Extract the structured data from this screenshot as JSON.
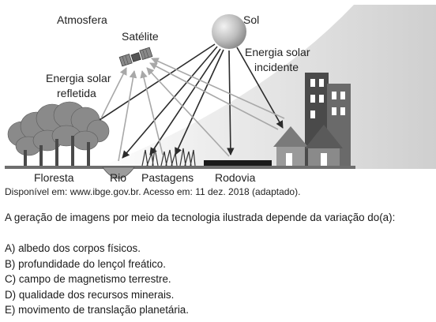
{
  "figure": {
    "labels": {
      "atmosphere": "Atmosfera",
      "satellite": "Satélite",
      "sun": "Sol",
      "incident_line1": "Energia solar",
      "incident_line2": "incidente",
      "reflected_line1": "Energia solar",
      "reflected_line2": "refletida",
      "forest": "Floresta",
      "river": "Rio",
      "pastures": "Pastagens",
      "road": "Rodovia"
    },
    "colors": {
      "atmosphere_band": "#d4d4d4",
      "sun": "#b5b5b5",
      "arrows_incident": "#2b2b2b",
      "arrows_reflected": "#a8a8a8",
      "ground": "#6e6e6e"
    }
  },
  "source": "Disponível em: www.ibge.gov.br. Acesso em: 11 dez. 2018 (adaptado).",
  "question": "A geração de imagens por meio da tecnologia ilustrada depende da variação do(a):",
  "options": [
    "A) albedo dos corpos físicos.",
    "B) profundidade do lençol freático.",
    "C) campo de magnetismo terrestre.",
    "D) qualidade dos recursos minerais.",
    "E) movimento de translação planetária."
  ]
}
